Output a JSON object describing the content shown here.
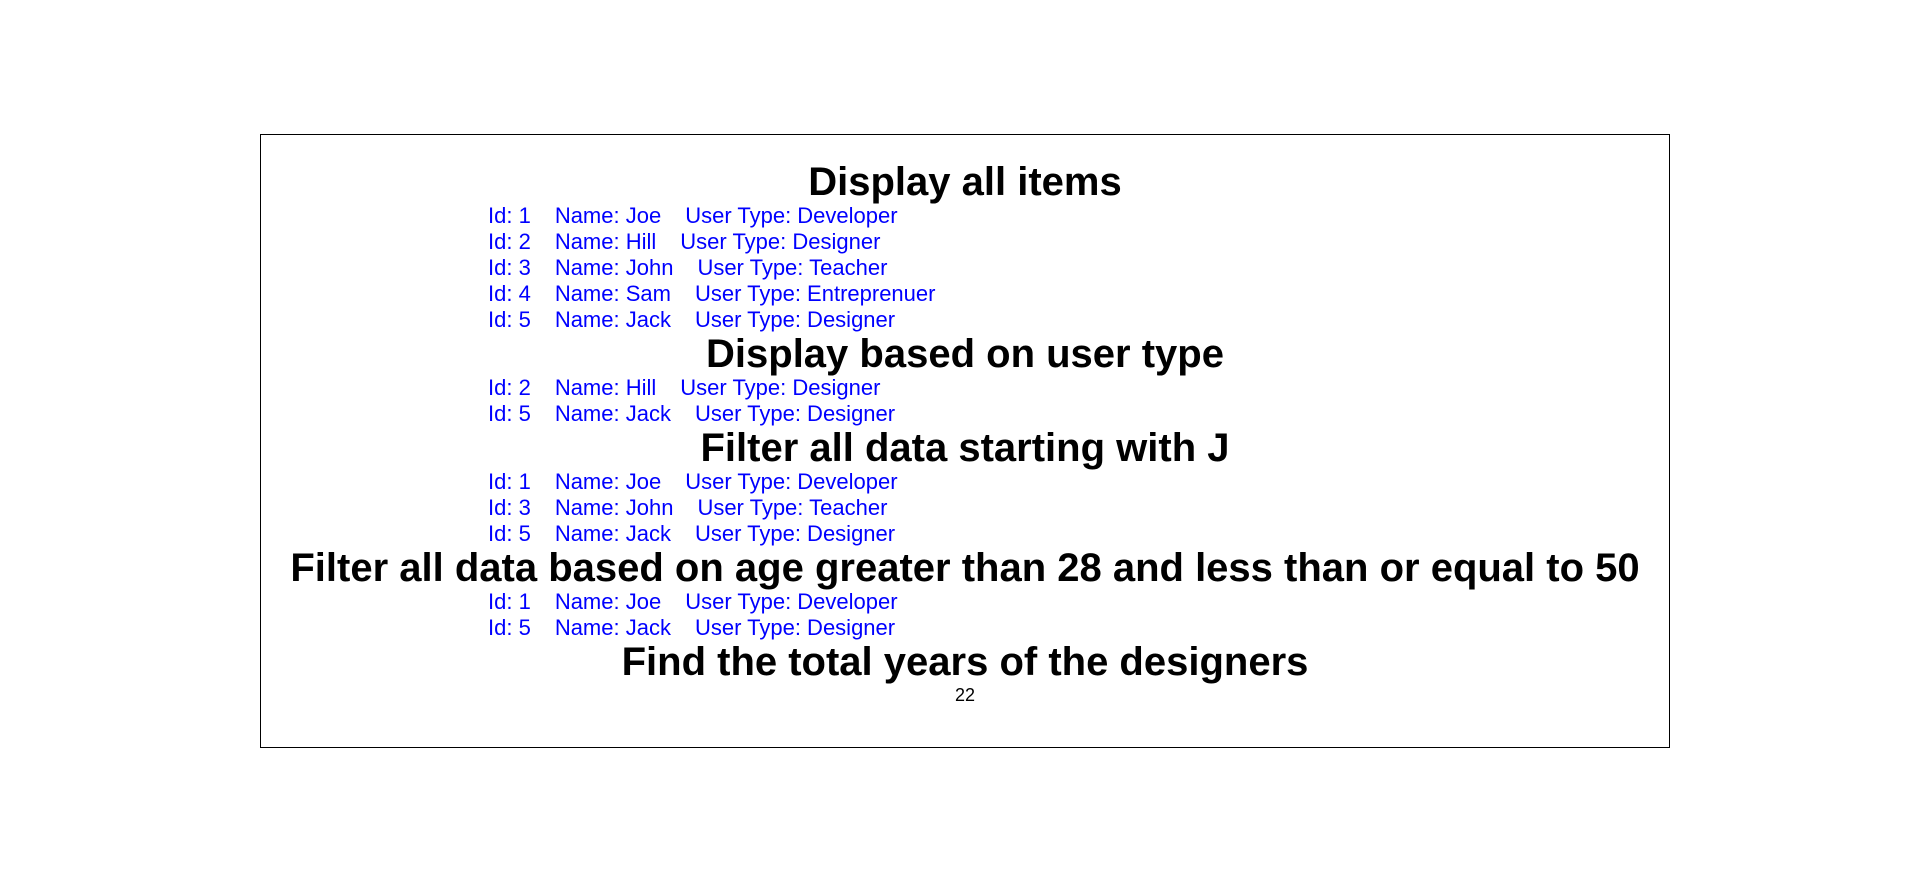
{
  "colors": {
    "item_text": "#0000ff",
    "heading_text": "#000000",
    "border": "#000000"
  },
  "sections": [
    {
      "title": "Display all items",
      "items": [
        {
          "id": "Id: 1",
          "name": "Name: Joe",
          "type": "User Type: Developer"
        },
        {
          "id": "Id: 2",
          "name": "Name: Hill",
          "type": "User Type: Designer"
        },
        {
          "id": "Id: 3",
          "name": "Name: John",
          "type": "User Type: Teacher"
        },
        {
          "id": "Id: 4",
          "name": "Name: Sam",
          "type": "User Type: Entreprenuer"
        },
        {
          "id": "Id: 5",
          "name": "Name: Jack",
          "type": "User Type: Designer"
        }
      ]
    },
    {
      "title": "Display based on user type",
      "items": [
        {
          "id": "Id: 2",
          "name": "Name: Hill",
          "type": "User Type: Designer"
        },
        {
          "id": "Id: 5",
          "name": "Name: Jack",
          "type": "User Type: Designer"
        }
      ]
    },
    {
      "title": "Filter all data starting with J",
      "items": [
        {
          "id": "Id: 1",
          "name": "Name: Joe",
          "type": "User Type: Developer"
        },
        {
          "id": "Id: 3",
          "name": "Name: John",
          "type": "User Type: Teacher"
        },
        {
          "id": "Id: 5",
          "name": "Name: Jack",
          "type": "User Type: Designer"
        }
      ]
    },
    {
      "title": "Filter all data based on age greater than 28 and less than or equal to 50",
      "items": [
        {
          "id": "Id: 1",
          "name": "Name: Joe",
          "type": "User Type: Developer"
        },
        {
          "id": "Id: 5",
          "name": "Name: Jack",
          "type": "User Type: Designer"
        }
      ]
    },
    {
      "title": "Find the total years of the designers",
      "total": "22"
    }
  ]
}
